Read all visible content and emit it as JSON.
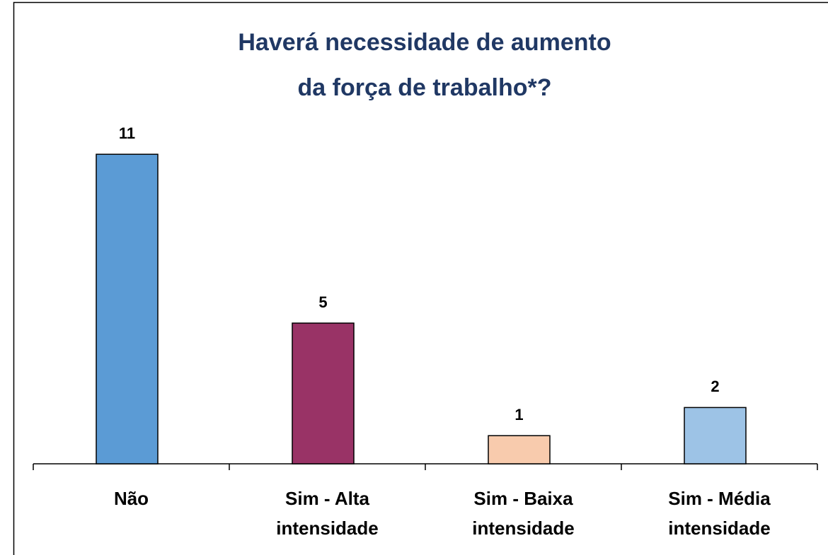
{
  "chart_data": {
    "type": "bar",
    "title": [
      "Haverá necessidade de aumento",
      "da força de trabalho*?"
    ],
    "categories": [
      "Não",
      "Sim - Alta intensidade",
      "Sim - Baixa intensidade",
      "Sim - Média intensidade"
    ],
    "values": [
      11,
      5,
      1,
      2
    ],
    "colors": [
      "#5b9bd5",
      "#993366",
      "#f8cbad",
      "#9dc3e6"
    ]
  }
}
